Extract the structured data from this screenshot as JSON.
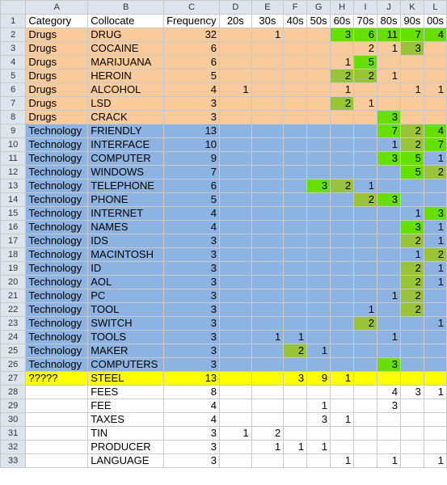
{
  "columns": [
    "A",
    "B",
    "C",
    "D",
    "E",
    "F",
    "G",
    "H",
    "I",
    "J",
    "K",
    "L"
  ],
  "colors": {
    "drugs_bg": "#f9cb9c",
    "tech_bg": "#8db3e2",
    "unknown_bg": "#ffff00",
    "highlight_bright": "#66e000",
    "highlight_olive": "#99c338",
    "header_bg": "#dde4ee",
    "grid_line": "#c9c9c9"
  },
  "rows": [
    {
      "num": "1",
      "bg": "white",
      "cells": [
        "Category",
        "Collocate",
        "Frequency",
        "20s",
        "30s",
        "40s",
        "50s",
        "60s",
        "70s",
        "80s",
        "90s",
        "00s"
      ],
      "hl": {}
    },
    {
      "num": "2",
      "bg": "drugs",
      "cells": [
        "Drugs",
        "DRUG",
        "32",
        "",
        "1",
        "",
        "",
        "3",
        "6",
        "11",
        "7",
        "4"
      ],
      "hl": {
        "7": "bright",
        "8": "bright",
        "9": "bright",
        "10": "bright",
        "11": "bright"
      }
    },
    {
      "num": "3",
      "bg": "drugs",
      "cells": [
        "Drugs",
        "COCAINE",
        "6",
        "",
        "",
        "",
        "",
        "",
        "2",
        "1",
        "3",
        ""
      ],
      "hl": {
        "10": "olive"
      }
    },
    {
      "num": "4",
      "bg": "drugs",
      "cells": [
        "Drugs",
        "MARIJUANA",
        "6",
        "",
        "",
        "",
        "",
        "1",
        "5",
        "",
        "",
        ""
      ],
      "hl": {
        "8": "bright"
      }
    },
    {
      "num": "5",
      "bg": "drugs",
      "cells": [
        "Drugs",
        "HEROIN",
        "5",
        "",
        "",
        "",
        "",
        "2",
        "2",
        "1",
        "",
        ""
      ],
      "hl": {
        "7": "olive",
        "8": "olive"
      }
    },
    {
      "num": "6",
      "bg": "drugs",
      "cells": [
        "Drugs",
        "ALCOHOL",
        "4",
        "1",
        "",
        "",
        "",
        "1",
        "",
        "",
        "1",
        "1"
      ],
      "hl": {}
    },
    {
      "num": "7",
      "bg": "drugs",
      "cells": [
        "Drugs",
        "LSD",
        "3",
        "",
        "",
        "",
        "",
        "2",
        "1",
        "",
        "",
        ""
      ],
      "hl": {
        "7": "olive"
      }
    },
    {
      "num": "8",
      "bg": "drugs",
      "cells": [
        "Drugs",
        "CRACK",
        "3",
        "",
        "",
        "",
        "",
        "",
        "",
        "3",
        "",
        ""
      ],
      "hl": {
        "9": "bright"
      }
    },
    {
      "num": "9",
      "bg": "tech",
      "cells": [
        "Technology",
        "FRIENDLY",
        "13",
        "",
        "",
        "",
        "",
        "",
        "",
        "7",
        "2",
        "4"
      ],
      "hl": {
        "9": "bright",
        "10": "olive",
        "11": "bright"
      }
    },
    {
      "num": "10",
      "bg": "tech",
      "cells": [
        "Technology",
        "INTERFACE",
        "10",
        "",
        "",
        "",
        "",
        "",
        "",
        "1",
        "2",
        "7"
      ],
      "hl": {
        "10": "olive",
        "11": "bright"
      }
    },
    {
      "num": "11",
      "bg": "tech",
      "cells": [
        "Technology",
        "COMPUTER",
        "9",
        "",
        "",
        "",
        "",
        "",
        "",
        "3",
        "5",
        "1"
      ],
      "hl": {
        "9": "bright",
        "10": "bright"
      }
    },
    {
      "num": "12",
      "bg": "tech",
      "cells": [
        "Technology",
        "WINDOWS",
        "7",
        "",
        "",
        "",
        "",
        "",
        "",
        "",
        "5",
        "2"
      ],
      "hl": {
        "10": "bright",
        "11": "olive"
      }
    },
    {
      "num": "13",
      "bg": "tech",
      "cells": [
        "Technology",
        "TELEPHONE",
        "6",
        "",
        "",
        "",
        "3",
        "2",
        "1",
        "",
        "",
        ""
      ],
      "hl": {
        "6": "bright",
        "7": "olive"
      }
    },
    {
      "num": "14",
      "bg": "tech",
      "cells": [
        "Technology",
        "PHONE",
        "5",
        "",
        "",
        "",
        "",
        "",
        "2",
        "3",
        "",
        ""
      ],
      "hl": {
        "8": "olive",
        "9": "bright"
      }
    },
    {
      "num": "15",
      "bg": "tech",
      "cells": [
        "Technology",
        "INTERNET",
        "4",
        "",
        "",
        "",
        "",
        "",
        "",
        "",
        "1",
        "3"
      ],
      "hl": {
        "11": "bright"
      }
    },
    {
      "num": "16",
      "bg": "tech",
      "cells": [
        "Technology",
        "NAMES",
        "4",
        "",
        "",
        "",
        "",
        "",
        "",
        "",
        "3",
        "1"
      ],
      "hl": {
        "10": "bright"
      }
    },
    {
      "num": "17",
      "bg": "tech",
      "cells": [
        "Technology",
        "IDS",
        "3",
        "",
        "",
        "",
        "",
        "",
        "",
        "",
        "2",
        "1"
      ],
      "hl": {
        "10": "olive"
      }
    },
    {
      "num": "18",
      "bg": "tech",
      "cells": [
        "Technology",
        "MACINTOSH",
        "3",
        "",
        "",
        "",
        "",
        "",
        "",
        "",
        "1",
        "2"
      ],
      "hl": {
        "11": "olive"
      }
    },
    {
      "num": "19",
      "bg": "tech",
      "cells": [
        "Technology",
        "ID",
        "3",
        "",
        "",
        "",
        "",
        "",
        "",
        "",
        "2",
        "1"
      ],
      "hl": {
        "10": "olive"
      }
    },
    {
      "num": "20",
      "bg": "tech",
      "cells": [
        "Technology",
        "AOL",
        "3",
        "",
        "",
        "",
        "",
        "",
        "",
        "",
        "2",
        "1"
      ],
      "hl": {
        "10": "olive"
      }
    },
    {
      "num": "21",
      "bg": "tech",
      "cells": [
        "Technology",
        "PC",
        "3",
        "",
        "",
        "",
        "",
        "",
        "",
        "1",
        "2",
        ""
      ],
      "hl": {
        "10": "olive"
      }
    },
    {
      "num": "22",
      "bg": "tech",
      "cells": [
        "Technology",
        "TOOL",
        "3",
        "",
        "",
        "",
        "",
        "",
        "1",
        "",
        "2",
        ""
      ],
      "hl": {
        "10": "olive"
      }
    },
    {
      "num": "23",
      "bg": "tech",
      "cells": [
        "Technology",
        "SWITCH",
        "3",
        "",
        "",
        "",
        "",
        "",
        "2",
        "",
        "",
        "1"
      ],
      "hl": {
        "8": "olive"
      }
    },
    {
      "num": "24",
      "bg": "tech",
      "cells": [
        "Technology",
        "TOOLS",
        "3",
        "",
        "1",
        "1",
        "",
        "",
        "",
        "1",
        "",
        ""
      ],
      "hl": {}
    },
    {
      "num": "25",
      "bg": "tech",
      "cells": [
        "Technology",
        "MAKER",
        "3",
        "",
        "",
        "2",
        "1",
        "",
        "",
        "",
        "",
        ""
      ],
      "hl": {
        "5": "olive"
      }
    },
    {
      "num": "26",
      "bg": "tech",
      "cells": [
        "Technology",
        "COMPUTERS",
        "3",
        "",
        "",
        "",
        "",
        "",
        "",
        "3",
        "",
        ""
      ],
      "hl": {
        "9": "bright"
      }
    },
    {
      "num": "27",
      "bg": "unk",
      "cells": [
        "?????",
        "STEEL",
        "13",
        "",
        "",
        "3",
        "9",
        "1",
        "",
        "",
        "",
        ""
      ],
      "hl": {}
    },
    {
      "num": "28",
      "bg": "white",
      "cells": [
        "",
        "FEES",
        "8",
        "",
        "",
        "",
        "",
        "",
        "",
        "4",
        "3",
        "1"
      ],
      "hl": {}
    },
    {
      "num": "29",
      "bg": "white",
      "cells": [
        "",
        "FEE",
        "4",
        "",
        "",
        "",
        "1",
        "",
        "",
        "3",
        "",
        ""
      ],
      "hl": {}
    },
    {
      "num": "30",
      "bg": "white",
      "cells": [
        "",
        "TAXES",
        "4",
        "",
        "",
        "",
        "3",
        "1",
        "",
        "",
        "",
        ""
      ],
      "hl": {}
    },
    {
      "num": "31",
      "bg": "white",
      "cells": [
        "",
        "TIN",
        "3",
        "1",
        "2",
        "",
        "",
        "",
        "",
        "",
        "",
        ""
      ],
      "hl": {}
    },
    {
      "num": "32",
      "bg": "white",
      "cells": [
        "",
        "PRODUCER",
        "3",
        "",
        "1",
        "1",
        "1",
        "",
        "",
        "",
        "",
        ""
      ],
      "hl": {}
    },
    {
      "num": "33",
      "bg": "white",
      "cells": [
        "",
        "LANGUAGE",
        "3",
        "",
        "",
        "",
        "",
        "1",
        "",
        "1",
        "",
        "1"
      ],
      "hl": {}
    }
  ]
}
